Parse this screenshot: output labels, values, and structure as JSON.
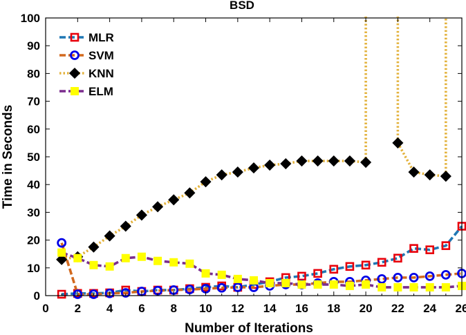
{
  "chart_data": {
    "type": "line",
    "title": "BSD",
    "xlabel": "Number of Iterations",
    "ylabel": "Time in Seconds",
    "xlim": [
      0,
      26
    ],
    "ylim": [
      0,
      100
    ],
    "xticks": [
      0,
      2,
      4,
      6,
      8,
      10,
      12,
      14,
      16,
      18,
      20,
      22,
      24,
      26
    ],
    "yticks": [
      0,
      10,
      20,
      30,
      40,
      50,
      60,
      70,
      80,
      90,
      100
    ],
    "legend_position": "top-left",
    "x": [
      1,
      2,
      3,
      4,
      5,
      6,
      7,
      8,
      9,
      10,
      11,
      12,
      13,
      14,
      15,
      16,
      17,
      18,
      19,
      20,
      21,
      22,
      23,
      24,
      25,
      26
    ],
    "series": [
      {
        "name": "MLR",
        "line_color": "#1f77b4",
        "marker_color": "#e8000b",
        "marker": "square-hollow",
        "values": [
          0.5,
          0.8,
          0.8,
          1.0,
          2.0,
          1.5,
          2.0,
          2.0,
          2.5,
          3.0,
          3.5,
          3.0,
          4.0,
          5.0,
          6.5,
          7.0,
          8.0,
          9.5,
          10.5,
          11.0,
          12.0,
          13.5,
          17.0,
          16.5,
          18.0,
          25.0
        ]
      },
      {
        "name": "SVM",
        "line_color": "#d2691e",
        "marker_color": "#0000e6",
        "marker": "circle-hollow",
        "values": [
          19.0,
          0.5,
          0.5,
          0.8,
          1.0,
          1.5,
          1.8,
          2.0,
          2.2,
          2.5,
          2.8,
          3.0,
          3.0,
          3.5,
          4.0,
          4.0,
          4.5,
          5.0,
          5.0,
          5.5,
          6.0,
          6.5,
          6.5,
          7.0,
          7.5,
          8.0
        ]
      },
      {
        "name": "KNN",
        "line_color": "#e3b23c",
        "marker_color": "#000000",
        "marker": "diamond",
        "values": [
          13.0,
          14.0,
          17.5,
          21.5,
          25.0,
          29.0,
          32.0,
          34.5,
          37.0,
          41.0,
          43.5,
          44.5,
          46.0,
          47.0,
          47.5,
          48.5,
          48.5,
          48.5,
          48.5,
          48.0,
          null,
          55.0,
          44.5,
          43.5,
          43.0,
          null
        ],
        "spikes_above_axis_at": [
          20,
          22,
          25
        ]
      },
      {
        "name": "ELM",
        "line_color": "#7b2d8e",
        "marker_color": "#ffff00",
        "marker": "square-filled",
        "values": [
          15.5,
          13.5,
          11.0,
          10.5,
          13.5,
          14.0,
          12.5,
          12.0,
          11.5,
          8.0,
          7.5,
          6.0,
          5.5,
          4.5,
          4.5,
          4.0,
          4.0,
          4.0,
          3.5,
          4.0,
          3.0,
          3.0,
          3.0,
          3.0,
          3.0,
          3.5
        ]
      }
    ]
  }
}
